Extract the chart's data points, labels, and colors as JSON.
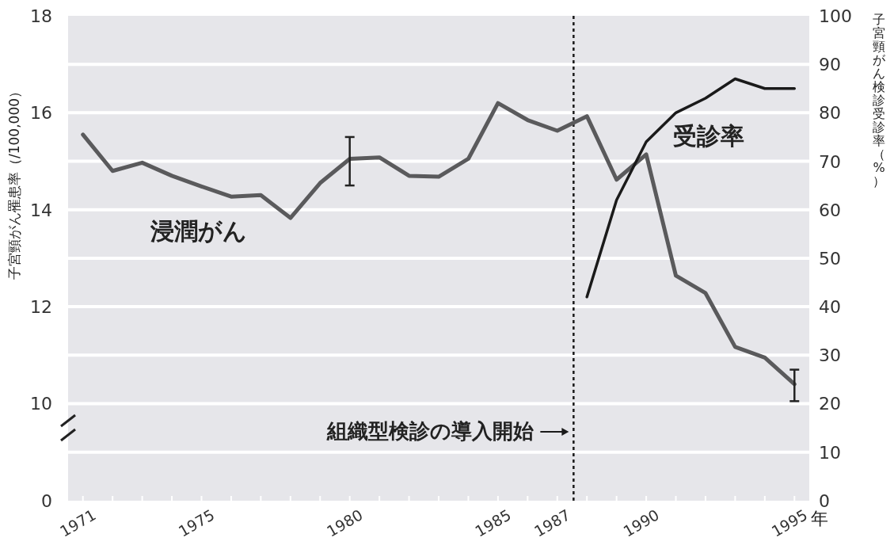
{
  "chart_data": [
    {
      "type": "line",
      "ylabel": "子宮頸がん罹患率（/100,000）",
      "y2label": "子宮頸がん検診受診率（%）",
      "x": [
        1971,
        1972,
        1973,
        1974,
        1975,
        1976,
        1977,
        1978,
        1979,
        1980,
        1981,
        1982,
        1983,
        1984,
        1985,
        1986,
        1987,
        1988,
        1989,
        1990,
        1991,
        1992,
        1993,
        1994,
        1995
      ],
      "series": [
        {
          "name": "浸潤がん",
          "color": "#5a5a5c",
          "values": [
            15.55,
            14.8,
            14.97,
            14.7,
            14.48,
            14.27,
            14.3,
            13.83,
            14.55,
            15.05,
            15.08,
            14.7,
            14.68,
            15.05,
            16.2,
            15.85,
            15.63,
            15.93,
            14.62,
            15.14,
            12.64,
            12.28,
            11.17,
            10.95,
            10.4
          ],
          "errors": [
            null,
            null,
            null,
            null,
            null,
            null,
            null,
            null,
            null,
            [
              14.5,
              15.5
            ],
            null,
            null,
            null,
            null,
            null,
            null,
            null,
            null,
            null,
            null,
            null,
            null,
            null,
            null,
            [
              10.05,
              10.7
            ]
          ]
        },
        {
          "name": "受診率",
          "color": "#1a1a1a",
          "axis": "y2",
          "x": [
            1988,
            1989,
            1990,
            1991,
            1992,
            1993,
            1994,
            1995
          ],
          "values": [
            42,
            62,
            74,
            80,
            83,
            87,
            85,
            85
          ]
        }
      ],
      "xlim": [
        1970.5,
        1995.5
      ],
      "tick_labels": "y",
      "ylim": [
        9.5,
        18
      ],
      "yticks": [
        10,
        12,
        14,
        16,
        18
      ],
      "y2lim": [
        15,
        100
      ],
      "y2ticks": [
        20,
        30,
        40,
        50,
        60,
        70,
        80,
        90,
        100
      ],
      "ref_lines": [
        {
          "axis": "x",
          "value": 1987.55,
          "line_style": "dotted",
          "color": "#1a1a1a"
        }
      ],
      "grid": true,
      "legend": false
    },
    {
      "type": "line",
      "xlabel": "年",
      "annotations": [
        "0"
      ],
      "xlim": [
        1970.5,
        1995.5
      ],
      "xticks": [
        1971,
        {
          "value": 1972,
          "label": null
        },
        {
          "value": 1973,
          "label": null
        },
        {
          "value": 1974,
          "label": null
        },
        1975,
        {
          "value": 1976,
          "label": null
        },
        {
          "value": 1977,
          "label": null
        },
        {
          "value": 1978,
          "label": null
        },
        {
          "value": 1979,
          "label": null
        },
        1980,
        {
          "value": 1981,
          "label": null
        },
        {
          "value": 1982,
          "label": null
        },
        {
          "value": 1983,
          "label": null
        },
        {
          "value": 1984,
          "label": null
        },
        1985,
        {
          "value": 1986,
          "label": null
        },
        1987,
        {
          "value": 1988,
          "label": null
        },
        {
          "value": 1989,
          "label": null
        },
        1990,
        {
          "value": 1991,
          "label": null
        },
        {
          "value": 1992,
          "label": null
        },
        {
          "value": 1993,
          "label": null
        },
        {
          "value": 1994,
          "label": null
        },
        1995
      ],
      "y2lim": [
        0,
        15
      ],
      "y2ticks": [
        0,
        10
      ],
      "ref_lines": [
        {
          "axis": "x",
          "value": 1987.55,
          "label": "組織型検診の導入開始",
          "line_style": "dotted",
          "color": "#1a1a1a"
        }
      ],
      "grid": true,
      "legend": false
    }
  ]
}
